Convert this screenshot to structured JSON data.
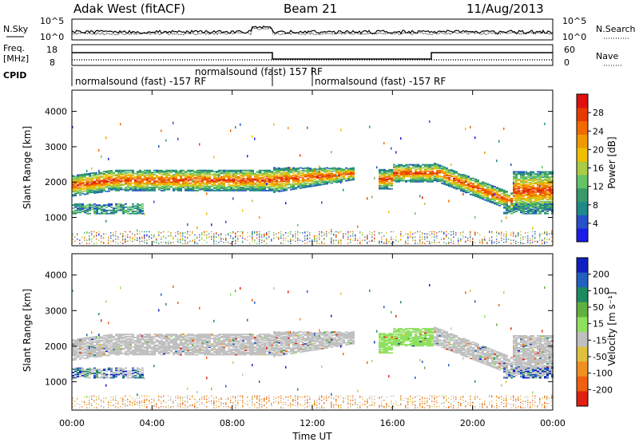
{
  "header": {
    "station": "Adak West (fitACF)",
    "beam": "Beam 21",
    "date": "11/Aug/2013"
  },
  "left_labels": {
    "nsky": "N.Sky",
    "freq": "Freq.",
    "mhz": "[MHz]",
    "cpid": "CPID"
  },
  "right_labels": {
    "nsearch": "N.Search",
    "nave": "Nave"
  },
  "noise_axis": {
    "top": "10^5",
    "bottom": "10^0"
  },
  "freq_axis": {
    "left_top": "18",
    "left_bottom": "8",
    "right_top": "60",
    "right_bottom": "0"
  },
  "cpid_labels": [
    {
      "text": "normalsound (fast) -157 RF"
    },
    {
      "text": "normalsound (fast) 157 RF"
    },
    {
      "text": "normalsound (fast) -157 RF"
    }
  ],
  "colors": {
    "power": [
      "#1c1ce8",
      "#2850c8",
      "#1e8a8a",
      "#3a9a6a",
      "#66c266",
      "#aacc44",
      "#f0c000",
      "#f09a00",
      "#f06a00",
      "#e83a00",
      "#e01010"
    ],
    "velocity": [
      "#1020c0",
      "#2060c0",
      "#1e8a60",
      "#60b040",
      "#90e060",
      "#c0c0c0",
      "#e0c040",
      "#f09020",
      "#f06010",
      "#e02010"
    ]
  },
  "chart_data": [
    {
      "type": "heatmap",
      "name": "power",
      "ylabel": "Slant Range [km]",
      "yticks": [
        "1000",
        "2000",
        "3000",
        "4000"
      ],
      "ylim": [
        200,
        4600
      ],
      "colorbar_label": "Power [dB]",
      "colorbar_ticks": [
        "4",
        "8",
        "12",
        "16",
        "20",
        "24",
        "28"
      ],
      "colorbar_range": [
        0,
        32
      ]
    },
    {
      "type": "heatmap",
      "name": "velocity",
      "ylabel": "Slant Range [km]",
      "yticks": [
        "1000",
        "2000",
        "3000",
        "4000"
      ],
      "ylim": [
        200,
        4600
      ],
      "xlabel": "Time UT",
      "xticks": [
        "00:00",
        "04:00",
        "08:00",
        "12:00",
        "16:00",
        "20:00",
        "00:00"
      ],
      "xlim": [
        0,
        24
      ],
      "colorbar_label": "Velocity [m s⁻¹]",
      "colorbar_ticks": [
        "200",
        "100",
        "50",
        "15",
        "-15",
        "-50",
        "-100",
        "-200"
      ]
    }
  ]
}
